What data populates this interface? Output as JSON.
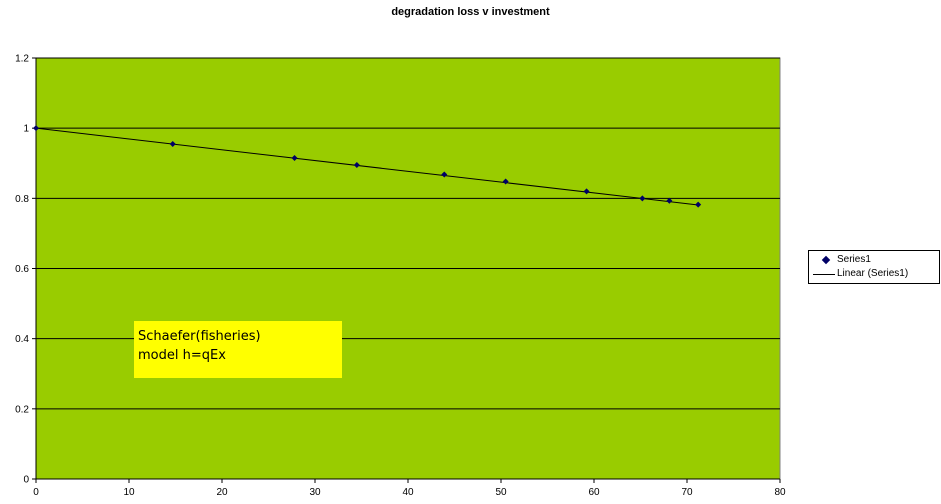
{
  "chart_data": {
    "type": "scatter",
    "title": "degradation loss v investment",
    "xlabel": "",
    "ylabel": "",
    "xlim": [
      0,
      80
    ],
    "ylim": [
      0,
      1.2
    ],
    "x_ticks": [
      0,
      10,
      20,
      30,
      40,
      50,
      60,
      70,
      80
    ],
    "y_ticks": [
      0,
      0.2,
      0.4,
      0.6,
      0.8,
      1,
      1.2
    ],
    "x_tick_labels": [
      "0",
      "10",
      "20",
      "30",
      "40",
      "50",
      "60",
      "70",
      "80"
    ],
    "y_tick_labels": [
      "0",
      "0.2",
      "0.4",
      "0.6",
      "0.8",
      "1",
      "1.2"
    ],
    "grid": "horizontal",
    "legend_position": "right",
    "plot_background": "#99cc00",
    "series": [
      {
        "name": "Series1",
        "marker": "diamond",
        "color": "#000066",
        "x": [
          0,
          14.7,
          27.8,
          34.5,
          43.9,
          50.5,
          59.2,
          65.2,
          68.1,
          71.2
        ],
        "y": [
          1.0,
          0.955,
          0.915,
          0.895,
          0.868,
          0.848,
          0.82,
          0.8,
          0.793,
          0.782
        ]
      },
      {
        "name": "Linear (Series1)",
        "type": "trendline",
        "color": "#000000",
        "x": [
          0,
          71.2
        ],
        "y": [
          1.0,
          0.781
        ]
      }
    ],
    "annotation": {
      "lines": [
        "Schaefer(fisheries)",
        "model h=qEx"
      ],
      "background": "#ffff00"
    }
  }
}
